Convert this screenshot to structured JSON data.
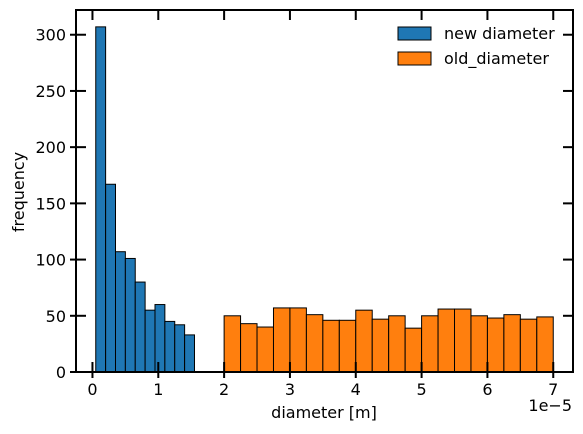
{
  "chart_data": {
    "type": "bar",
    "xlabel": "diameter [m]",
    "ylabel": "frequency",
    "x_offset_label": "1e−5",
    "xlim": [
      -0.25,
      7.3
    ],
    "ylim": [
      0,
      322
    ],
    "x_ticks": [
      0,
      1,
      2,
      3,
      4,
      5,
      6,
      7
    ],
    "x_tick_labels": [
      "0",
      "1",
      "2",
      "3",
      "4",
      "5",
      "6",
      "7"
    ],
    "y_ticks": [
      0,
      50,
      100,
      150,
      200,
      250,
      300
    ],
    "y_tick_labels": [
      "0",
      "50",
      "100",
      "150",
      "200",
      "250",
      "300"
    ],
    "legend_position": "top-right",
    "series": [
      {
        "name": "new diameter",
        "color": "#1f77b4",
        "bin_edges": [
          0.05,
          0.2,
          0.35,
          0.5,
          0.65,
          0.8,
          0.95,
          1.1,
          1.25,
          1.4,
          1.55
        ],
        "values": [
          307,
          167,
          107,
          101,
          80,
          55,
          60,
          45,
          42,
          33
        ]
      },
      {
        "name": "old_diameter",
        "color": "#ff7f0e",
        "bin_edges": [
          2.0,
          2.25,
          2.5,
          2.75,
          3.0,
          3.25,
          3.5,
          3.75,
          4.0,
          4.25,
          4.5,
          4.75,
          5.0,
          5.25,
          5.5,
          5.75,
          6.0,
          6.25,
          6.5,
          6.75,
          7.0
        ],
        "values": [
          50,
          43,
          40,
          57,
          57,
          51,
          46,
          46,
          55,
          47,
          50,
          39,
          50,
          56,
          56,
          50,
          48,
          51,
          47,
          49
        ]
      }
    ]
  }
}
